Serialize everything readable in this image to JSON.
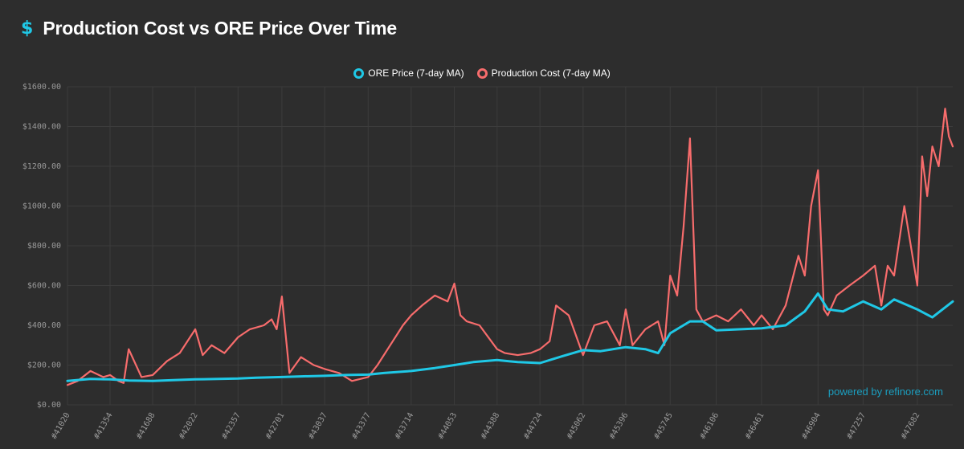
{
  "header": {
    "icon": "dollar-sign-icon",
    "icon_glyph": "$",
    "title": "Production Cost vs ORE Price Over Time"
  },
  "watermark": "powered by refinore.com",
  "colors": {
    "ore_price": "#1fc8e6",
    "production_cost": "#f76c6c",
    "grid": "#3c3c3c",
    "background": "#2d2d2d"
  },
  "chart_data": {
    "type": "line",
    "title": "Production Cost vs ORE Price Over Time",
    "xlabel": "",
    "ylabel": "",
    "ylim": [
      0,
      1600
    ],
    "y_ticks": [
      "$0.00",
      "$200.00",
      "$400.00",
      "$600.00",
      "$800.00",
      "$1000.00",
      "$1200.00",
      "$1400.00",
      "$1600.00"
    ],
    "x_ticks": [
      "#41020",
      "#41354",
      "#41688",
      "#42022",
      "#42357",
      "#42701",
      "#43037",
      "#43377",
      "#43714",
      "#44053",
      "#44388",
      "#44724",
      "#45062",
      "#45396",
      "#45745",
      "#46106",
      "#46461",
      "#46904",
      "#47257",
      "#47682"
    ],
    "xlim": [
      41020,
      47960
    ],
    "legend_position": "top-center",
    "series": [
      {
        "name": "ORE Price (7-day MA)",
        "color": "#1fc8e6",
        "x": [
          41020,
          41200,
          41354,
          41500,
          41688,
          41850,
          42022,
          42200,
          42357,
          42500,
          42701,
          42850,
          43037,
          43200,
          43377,
          43500,
          43714,
          43900,
          44053,
          44200,
          44388,
          44550,
          44724,
          44900,
          45062,
          45200,
          45396,
          45550,
          45650,
          45745,
          45900,
          46000,
          46106,
          46300,
          46461,
          46650,
          46800,
          46904,
          46980,
          47100,
          47257,
          47400,
          47500,
          47682,
          47800,
          47960
        ],
        "y": [
          120,
          130,
          128,
          122,
          120,
          124,
          128,
          130,
          132,
          136,
          140,
          143,
          146,
          150,
          152,
          160,
          170,
          185,
          200,
          215,
          225,
          215,
          210,
          245,
          275,
          270,
          290,
          280,
          260,
          360,
          420,
          420,
          375,
          380,
          385,
          400,
          470,
          560,
          480,
          470,
          520,
          480,
          530,
          480,
          440,
          520
        ]
      },
      {
        "name": "Production Cost (7-day MA)",
        "color": "#f76c6c",
        "x": [
          41020,
          41100,
          41200,
          41300,
          41354,
          41420,
          41460,
          41500,
          41600,
          41688,
          41800,
          41900,
          42022,
          42080,
          42150,
          42250,
          42357,
          42450,
          42560,
          42620,
          42660,
          42701,
          42760,
          42850,
          42950,
          43037,
          43150,
          43250,
          43377,
          43450,
          43550,
          43650,
          43714,
          43800,
          43900,
          44000,
          44053,
          44100,
          44150,
          44250,
          44388,
          44450,
          44550,
          44650,
          44724,
          44800,
          44850,
          44950,
          45062,
          45150,
          45250,
          45350,
          45396,
          45450,
          45550,
          45650,
          45700,
          45745,
          45800,
          45850,
          45900,
          45950,
          46000,
          46106,
          46200,
          46300,
          46400,
          46461,
          46550,
          46650,
          46750,
          46800,
          46850,
          46904,
          46950,
          46980,
          47050,
          47150,
          47257,
          47350,
          47400,
          47450,
          47500,
          47580,
          47682,
          47720,
          47760,
          47800,
          47850,
          47900,
          47930,
          47960
        ],
        "y": [
          100,
          120,
          170,
          140,
          150,
          120,
          110,
          280,
          140,
          150,
          220,
          260,
          380,
          250,
          300,
          260,
          340,
          380,
          400,
          430,
          380,
          545,
          160,
          240,
          200,
          180,
          160,
          120,
          140,
          200,
          300,
          400,
          450,
          500,
          550,
          520,
          610,
          450,
          420,
          400,
          280,
          260,
          250,
          260,
          280,
          320,
          500,
          450,
          250,
          400,
          420,
          300,
          480,
          300,
          380,
          420,
          300,
          650,
          550,
          900,
          1340,
          480,
          420,
          450,
          420,
          480,
          400,
          450,
          380,
          500,
          750,
          650,
          1000,
          1180,
          480,
          450,
          550,
          600,
          650,
          700,
          500,
          700,
          650,
          1000,
          600,
          1250,
          1050,
          1300,
          1200,
          1490,
          1350,
          1300
        ]
      }
    ]
  }
}
